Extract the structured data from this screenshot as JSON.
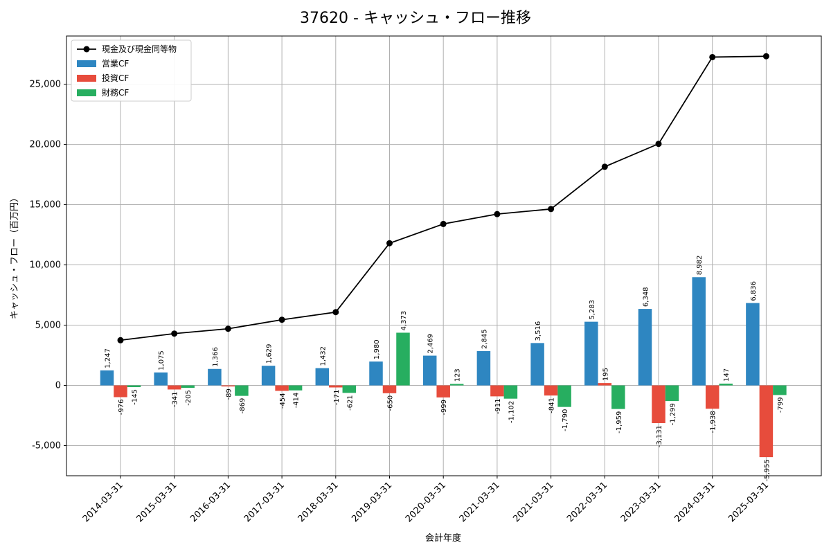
{
  "chart_data": {
    "type": "bar",
    "title": "37620 - キャッシュ・フロー推移",
    "xlabel": "会計年度",
    "ylabel": "キャッシュ・フロー（百万円）",
    "ylim": [
      -7500,
      29000
    ],
    "yticks": [
      -5000,
      0,
      5000,
      10000,
      15000,
      20000,
      25000
    ],
    "ytick_labels": [
      "-5,000",
      "0",
      "5,000",
      "10,000",
      "15,000",
      "20,000",
      "25,000"
    ],
    "grid": true,
    "legend_position": "top-left",
    "categories": [
      "2014-03-31",
      "2015-03-31",
      "2016-03-31",
      "2017-03-31",
      "2018-03-31",
      "2019-03-31",
      "2020-03-31",
      "2021-03-31",
      "2021-03-31",
      "2022-03-31",
      "2023-03-31",
      "2024-03-31",
      "2025-03-31"
    ],
    "series": [
      {
        "name": "現金及び現金同等物",
        "kind": "line",
        "color": "#000000",
        "values": [
          3750,
          4300,
          4700,
          5450,
          6080,
          11800,
          13400,
          14220,
          14640,
          18150,
          20050,
          27250,
          27320
        ]
      },
      {
        "name": "営業CF",
        "kind": "bar",
        "color": "#2e86c1",
        "values": [
          1247,
          1075,
          1366,
          1629,
          1432,
          1980,
          2469,
          2845,
          3516,
          5283,
          6348,
          8982,
          6836
        ],
        "labels": [
          "1,247",
          "1,075",
          "1,366",
          "1,629",
          "1,432",
          "1,980",
          "2,469",
          "2,845",
          "3,516",
          "5,283",
          "6,348",
          "8,982",
          "6,836"
        ]
      },
      {
        "name": "投資CF",
        "kind": "bar",
        "color": "#e74c3c",
        "values": [
          -976,
          -341,
          -89,
          -454,
          -171,
          -650,
          -999,
          -911,
          -841,
          195,
          -3131,
          -1938,
          -5955
        ],
        "labels": [
          "-976",
          "-341",
          "-89",
          "-454",
          "-171",
          "-650",
          "-999",
          "-911",
          "-841",
          "195",
          "-3,131",
          "-1,938",
          "-5,955"
        ]
      },
      {
        "name": "財務CF",
        "kind": "bar",
        "color": "#27ae60",
        "values": [
          -145,
          -205,
          -869,
          -414,
          -621,
          4373,
          123,
          -1102,
          -1790,
          -1959,
          -1299,
          147,
          -799
        ],
        "labels": [
          "-145",
          "-205",
          "-869",
          "-414",
          "-621",
          "4,373",
          "123",
          "-1,102",
          "-1,790",
          "-1,959",
          "-1,299",
          "147",
          "-799"
        ]
      }
    ]
  }
}
